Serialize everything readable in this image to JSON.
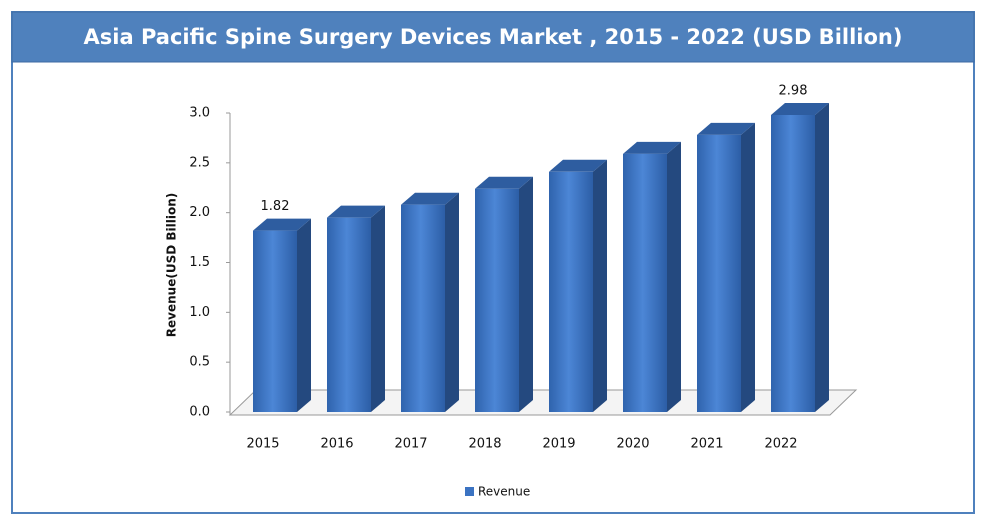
{
  "chart_data": {
    "type": "bar3d",
    "title": "Asia Pacific Spine Surgery Devices Market , 2015 - 2022 (USD Billion)",
    "y_label": "Revenue(USD Billion)",
    "categories": [
      "2015",
      "2016",
      "2017",
      "2018",
      "2019",
      "2020",
      "2021",
      "2022"
    ],
    "series": [
      {
        "name": "Revenue",
        "color": "#3b73c2",
        "values": [
          1.82,
          1.95,
          2.08,
          2.24,
          2.41,
          2.59,
          2.78,
          2.98
        ],
        "value_labels": [
          "1.82",
          null,
          null,
          null,
          null,
          null,
          null,
          "2.98"
        ]
      }
    ],
    "ylim": [
      0,
      3
    ],
    "yticks": [
      {
        "value": 0,
        "label": "0.0"
      },
      0.5,
      {
        "value": 1,
        "label": "1.0"
      },
      1.5,
      {
        "value": 2,
        "label": "2.0"
      },
      2.5,
      {
        "value": 3,
        "label": "3.0"
      }
    ],
    "legend": "bottom"
  }
}
